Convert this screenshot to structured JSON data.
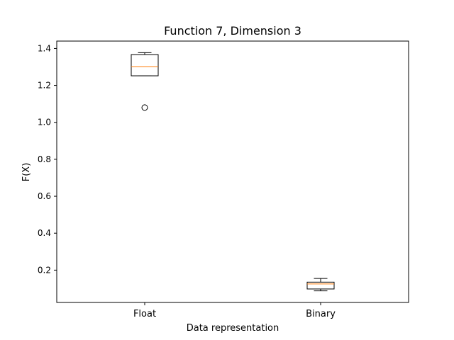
{
  "chart_data": {
    "type": "box",
    "title": "Function 7, Dimension 3",
    "xlabel": "Data representation",
    "ylabel": "F(X)",
    "categories": [
      "Float",
      "Binary"
    ],
    "ylim": [
      0.025,
      1.44
    ],
    "yticks": [
      0.2,
      0.4,
      0.6,
      0.8,
      1.0,
      1.2,
      1.4
    ],
    "ytick_labels": [
      "0.2",
      "0.4",
      "0.6",
      "0.8",
      "1.0",
      "1.2",
      "1.4"
    ],
    "grid": false,
    "boxes": [
      {
        "category": "Float",
        "whisker_low": 1.252,
        "q1": 1.252,
        "median": 1.302,
        "q3": 1.367,
        "whisker_high": 1.377,
        "outliers": [
          1.08
        ]
      },
      {
        "category": "Binary",
        "whisker_low": 0.088,
        "q1": 0.098,
        "median": 0.125,
        "q3": 0.135,
        "whisker_high": 0.155,
        "outliers": []
      }
    ],
    "colors": {
      "box": "#000000",
      "median": "#ff7f0e",
      "axes": "#000000"
    }
  }
}
